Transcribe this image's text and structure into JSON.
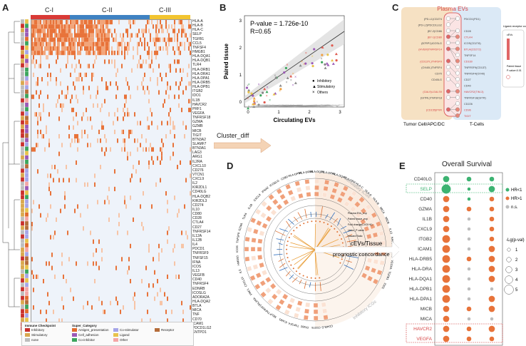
{
  "panels": {
    "a": "A",
    "b": "B",
    "c": "C",
    "d": "D",
    "e": "E"
  },
  "heatmap": {
    "clusters": [
      {
        "label": "C-I",
        "color": "#d93a36"
      },
      {
        "label": "C-II",
        "color": "#3f82c2"
      },
      {
        "label": "C-III",
        "color": "#f2c430"
      }
    ],
    "genes": [
      "HLA-A",
      "HLA-B",
      "HLA-C",
      "SELP",
      "TGFB1",
      "CCL5",
      "TNFSF4",
      "HMGB1",
      "HLA-DQA1",
      "HLA-DQB1",
      "TLR4",
      "HLA-DRB1",
      "HLA-DRA1",
      "HLA-DPA1",
      "HLA-DRB5",
      "HLA-DPB1",
      "ITGB2",
      "IDO1",
      "IL1B",
      "HAVCR2",
      "PRF1",
      "VEGFA",
      "TNFRSF18",
      "GZMA",
      "GZMB",
      "MICB",
      "TIGIT",
      "BTN3A2",
      "SLAMF7",
      "BTN3A1",
      "LAG3",
      "ARG1",
      "IL2RA",
      "CXCL10",
      "CD276",
      "VTCN1",
      "CXCL9",
      "IL2",
      "KIR2DL1",
      "CD40LG",
      "HLA-DQB2",
      "KIR2DL3",
      "CD274",
      "IL10",
      "CD80",
      "CD28",
      "CTLA4",
      "CD27",
      "TNFRSF14",
      "IL12A",
      "IL12B",
      "IL4",
      "PDCD1",
      "TNFRSF9",
      "TNFSF15",
      "IFNA",
      "ICOS",
      "IL13",
      "VEGFB",
      "CD40",
      "TNFRSF4",
      "EDNRB",
      "ICOSLG",
      "ADORA2A",
      "HLA-DQA2",
      "BTLA",
      "MICA",
      "TNF",
      "CD70",
      "ICAM1",
      "PDCD1LG2",
      "ENTPD1"
    ],
    "legend": {
      "immune_title": "Immune Checkpoint",
      "immune": [
        {
          "label": "Inhibitory",
          "color": "#c9302c"
        },
        {
          "label": "Stimulatory",
          "color": "#d9a84e"
        },
        {
          "label": "none",
          "color": "#bdbdbd"
        }
      ],
      "super_title": "Super_Category",
      "super": [
        {
          "label": "Antigen_presentation",
          "color": "#e26a2c"
        },
        {
          "label": "Cell_adhesion",
          "color": "#9b59b6"
        },
        {
          "label": "Co-inhibitor",
          "color": "#3ba55c"
        },
        {
          "label": "Co-stimulator",
          "color": "#a5a5e8"
        },
        {
          "label": "Ligand",
          "color": "#e8c34b"
        },
        {
          "label": "Other",
          "color": "#f4a6a6"
        },
        {
          "label": "Receptor",
          "color": "#b56c3a"
        }
      ]
    }
  },
  "scatter": {
    "ylabel": "Paired tissue",
    "xlabel": "Circulating EVs",
    "pvalue": "P-value = 1.726e-10",
    "r": "R=0.65",
    "xticks": [
      "0",
      "1",
      "2",
      "3"
    ],
    "yticks": [
      "0",
      "1",
      "2",
      "3"
    ],
    "legend": [
      {
        "label": "Inhibitory",
        "sym": "●"
      },
      {
        "label": "Stimulatory",
        "sym": "▲"
      },
      {
        "label": "Others",
        "sym": "×"
      }
    ]
  },
  "ligrec": {
    "title": "Plasma EVs",
    "left_label": "Tumor Cell/APC/DC",
    "right_label": "T-Cells",
    "legend_title": "Ligand-receptor coordination",
    "legend_sub1": "cEVs",
    "legend_sub2": "Paired tissue",
    "legend_sub3": "P-value<0.01",
    "pairs": [
      {
        "l": "(PD-L1)CD274",
        "r": "PDCD1(PD1)",
        "red": false
      },
      {
        "l": "(PD-L2)PDCD1LG2",
        "r": "",
        "red": false
      },
      {
        "l": "(B7-2)CD86",
        "r": "CD28",
        "red": false
      },
      {
        "l": "(B7-1)CD80",
        "r": "CTLA4",
        "red": true
      },
      {
        "l": "(B7RP1)ICOSLG",
        "r": "ICOS(CD278)",
        "red": false
      },
      {
        "l": "(HVEM)TNFRSF14",
        "r": "BTLA(CD272)",
        "red": true
      },
      {
        "l": "",
        "r": "TNFSF14",
        "red": false
      },
      {
        "l": "(CD137L)TNFSF9",
        "r": "CD160",
        "red": true
      },
      {
        "l": "(OX40L)TNFSF4",
        "r": "TNFRSF9(CD137)",
        "red": false
      },
      {
        "l": "CD70",
        "r": "TNFRSF4(OX40)",
        "red": false
      },
      {
        "l": "CD40LG",
        "r": "CD27",
        "red": false
      },
      {
        "l": "",
        "r": "CD40",
        "red": false
      },
      {
        "l": "(GAL9)LGALS9",
        "r": "HAVCR2(TIM-3)",
        "red": true
      },
      {
        "l": "(GITRL)TNFSF18",
        "r": "TNFRSF18(GITR)",
        "red": false
      },
      {
        "l": "",
        "r": "CD226",
        "red": false
      },
      {
        "l": "(CD155)PVR",
        "r": "CD96",
        "red": true
      },
      {
        "l": "",
        "r": "TIGIT",
        "red": true
      }
    ]
  },
  "circos": {
    "arrow_label": "Cluster_diff",
    "stimulatory": "Stimulatory ICGs",
    "inhibitory": "Inhibitory ICGs",
    "center1": "cEVs/Tissue",
    "center2": "prognostic concordance",
    "rings": [
      "Plasma EVs_exp",
      "Paired tissue_exp",
      "Fold change(CI/CII+II)",
      "Union_P-value",
      "Hazard Ratio"
    ],
    "genes": [
      "CD40LG",
      "CD276",
      "ITGB2",
      "TNFSF4",
      "ICAM1",
      "SELP",
      "TNFRSF18",
      "IL2RA",
      "PRF1",
      "CXCL10",
      "IL2",
      "HMGB1",
      "ICOS",
      "TNFSF9",
      "GZMA",
      "TLR4",
      "IL1B",
      "CXCL9",
      "IFNA2",
      "ICOSLG",
      "CD80",
      "HLA-DPB1",
      "HLA-DRB5",
      "HLA-DQB1",
      "HLA-DPA1",
      "HLA-DQA1",
      "HLA-DRA",
      "HLA-C",
      "HLA-A",
      "HLA-B",
      "MICA",
      "MICB",
      "IL10",
      "HAVCR2",
      "ARG1",
      "VEGFA",
      "TGFB1",
      "IDO1"
    ]
  },
  "survival": {
    "title": "Overall Survival",
    "genes": [
      "CD40LG",
      "SELP",
      "CD40",
      "GZMA",
      "IL1B",
      "CXCL9",
      "ITGB2",
      "ICAM1",
      "HLA-DRB5",
      "HLA-DRA",
      "HLA-DQA1",
      "HLA-DPB1",
      "HLA-DPA1",
      "MICB",
      "MICA",
      "HAVCR2",
      "VEGFA"
    ],
    "columns": [
      "cEVs",
      "Paired\ntissue",
      "TCGA"
    ],
    "col1": "cEVs",
    "col2": "Paired",
    "col2b": "tissue",
    "col3": "TCGA",
    "legend": [
      {
        "label": "HR<1",
        "color": "#3cb371"
      },
      {
        "label": "HR>1",
        "color": "#e8733a"
      },
      {
        "label": "n.s.",
        "color": "#bdbdbd"
      }
    ],
    "size_title": "-Lg(p-val)",
    "sizes": [
      "1",
      "2",
      "3",
      "4",
      "5"
    ],
    "dots": [
      [
        [
          "g",
          3
        ],
        [
          "g",
          2
        ],
        [
          "g",
          2
        ]
      ],
      [
        [
          "g",
          5
        ],
        [
          "g",
          1
        ],
        [
          "g",
          3
        ]
      ],
      [
        [
          "o",
          3
        ],
        [
          "g",
          1
        ],
        [
          "o",
          2
        ]
      ],
      [
        [
          "o",
          3
        ],
        [
          "o",
          2
        ],
        [
          "o",
          2
        ]
      ],
      [
        [
          "o",
          3
        ],
        [
          "n",
          1
        ],
        [
          "o",
          2
        ]
      ],
      [
        [
          "o",
          3
        ],
        [
          "n",
          1
        ],
        [
          "o",
          2
        ]
      ],
      [
        [
          "o",
          4
        ],
        [
          "n",
          1
        ],
        [
          "o",
          2
        ]
      ],
      [
        [
          "o",
          4
        ],
        [
          "n",
          1
        ],
        [
          "o",
          3
        ]
      ],
      [
        [
          "o",
          4
        ],
        [
          "o",
          2
        ],
        [
          "o",
          3
        ]
      ],
      [
        [
          "o",
          4
        ],
        [
          "n",
          1
        ],
        [
          "o",
          3
        ]
      ],
      [
        [
          "o",
          4
        ],
        [
          "n",
          1
        ],
        [
          "o",
          3
        ]
      ],
      [
        [
          "o",
          4
        ],
        [
          "n",
          1
        ],
        [
          "n",
          1
        ]
      ],
      [
        [
          "o",
          4
        ],
        [
          "n",
          1
        ],
        [
          "o",
          3
        ]
      ],
      [
        [
          "o",
          3
        ],
        [
          "o",
          2
        ],
        [
          "o",
          3
        ]
      ],
      [
        [
          "o",
          3
        ],
        [
          "n",
          1
        ],
        [
          "n",
          1
        ]
      ],
      [
        [
          "o",
          3
        ],
        [
          "o",
          2
        ],
        [
          "o",
          3
        ]
      ],
      [
        [
          "o",
          3
        ],
        [
          "o",
          2
        ],
        [
          "o",
          2
        ]
      ]
    ]
  }
}
